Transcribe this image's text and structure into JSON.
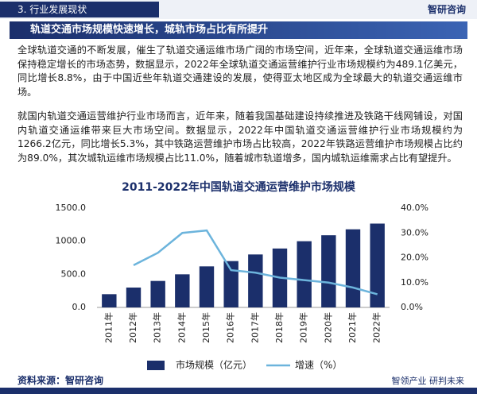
{
  "header": {
    "section": "3. 行业发展现状",
    "logo": "智研咨询",
    "title": "轨道交通市场规模快速增长，城轨市场占比有所提升"
  },
  "paragraphs": [
    "全球轨道交通的不断发展，催生了轨道交通运维市场广阔的市场空间，近年来，全球轨道交通运维市场保持稳定增长的市场态势，数据显示，2022年全球轨道交通运营维护行业市场规模约为489.1亿美元，同比增长8.8%，由于中国近些年轨道交通建设的发展，使得亚太地区成为全球最大的轨道交通运维市场。",
    "就国内轨道交通运营维护行业市场而言，近年来，随着我国基础建设持续推进及铁路干线网铺设，对国内轨道交通运维带来巨大市场空间。数据显示，2022年中国轨道交通运营维护行业市场规模约为1266.2亿元，同比增长5.3%，其中铁路运营维护市场占比较高，2022年铁路运营维护市场规模占比约为89.0%，其次城轨运维市场规模占比11.0%，随着城市轨道增多，国内城轨运维需求占比有望提升。"
  ],
  "chart_data": {
    "type": "bar-line",
    "title": "2011-2022年中国轨道交通运营维护市场规模",
    "categories": [
      "2011年",
      "2012年",
      "2013年",
      "2014年",
      "2015年",
      "2016年",
      "2017年",
      "2018年",
      "2019年",
      "2020年",
      "2021年",
      "2022年"
    ],
    "series": [
      {
        "name": "市场规模（亿元）",
        "color": "#1b2f6b",
        "type": "bar",
        "values": [
          200,
          300,
          400,
          500,
          620,
          700,
          800,
          890,
          1000,
          1090,
          1180,
          1266.2
        ]
      },
      {
        "name": "增速（%）",
        "color": "#6cb4dc",
        "type": "line",
        "axis": "y2",
        "values": [
          null,
          17,
          22,
          30,
          31,
          15,
          14,
          12,
          11,
          10,
          8,
          5.3
        ]
      }
    ],
    "ylim": [
      0,
      1500
    ],
    "yticks": [
      {
        "value": 0,
        "label": "0.0"
      },
      {
        "value": 500,
        "label": "500.0"
      },
      {
        "value": 1000,
        "label": "1000.0"
      },
      {
        "value": 1500,
        "label": "1500.0"
      }
    ],
    "y2lim": [
      0,
      40
    ],
    "y2ticks": [
      {
        "value": 0,
        "label": "0.0%"
      },
      {
        "value": 10,
        "label": "10.0%"
      },
      {
        "value": 20,
        "label": "20.0%"
      },
      {
        "value": 30,
        "label": "30.0%"
      },
      {
        "value": 40,
        "label": "40.0%"
      }
    ],
    "legend": "bottom"
  },
  "footer": {
    "source": "资料来源：智研咨询",
    "slogan": "智领产业 研判未来"
  }
}
